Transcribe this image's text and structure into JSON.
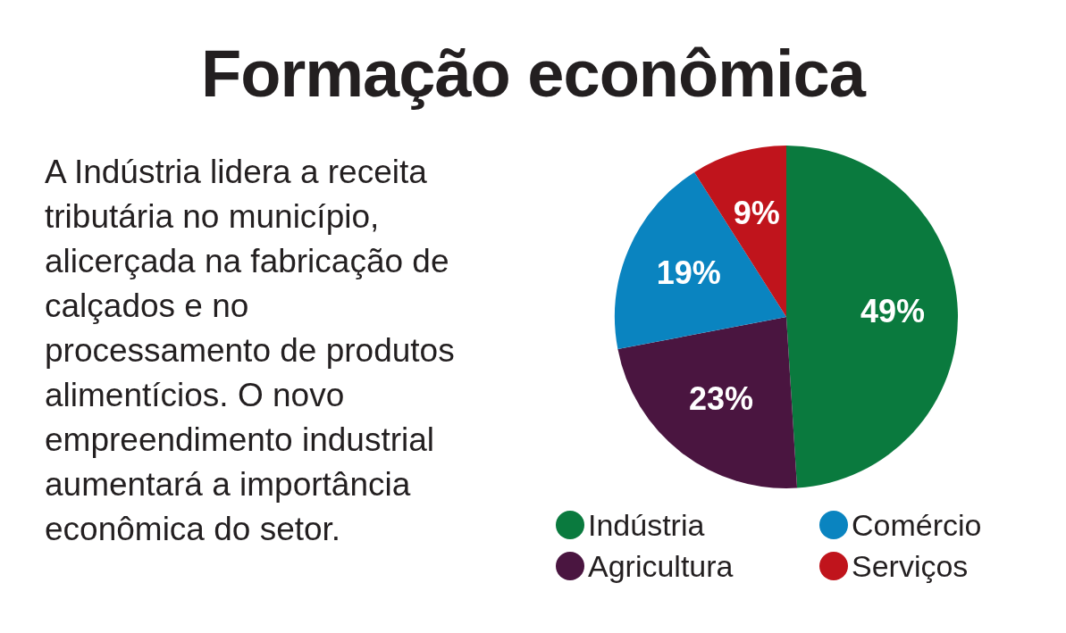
{
  "chart_data": {
    "type": "pie",
    "title": "Formação econômica",
    "annotations": [
      "A Indústria lidera a receita tributária no município, alicerçada na fabricação de calçados e no processamento de produtos alimentícios. O novo empreendimento industrial aumentará a importância econômica do setor."
    ],
    "categories": [
      "Indústria",
      "Agricultura",
      "Comércio",
      "Serviços"
    ],
    "values": [
      49,
      23,
      19,
      9
    ],
    "colors": [
      "#0a7a3e",
      "#4a1540",
      "#0a84c0",
      "#c0141c"
    ],
    "value_labels": [
      "49%",
      "23%",
      "19%",
      "9%"
    ],
    "legend": "bottom"
  }
}
